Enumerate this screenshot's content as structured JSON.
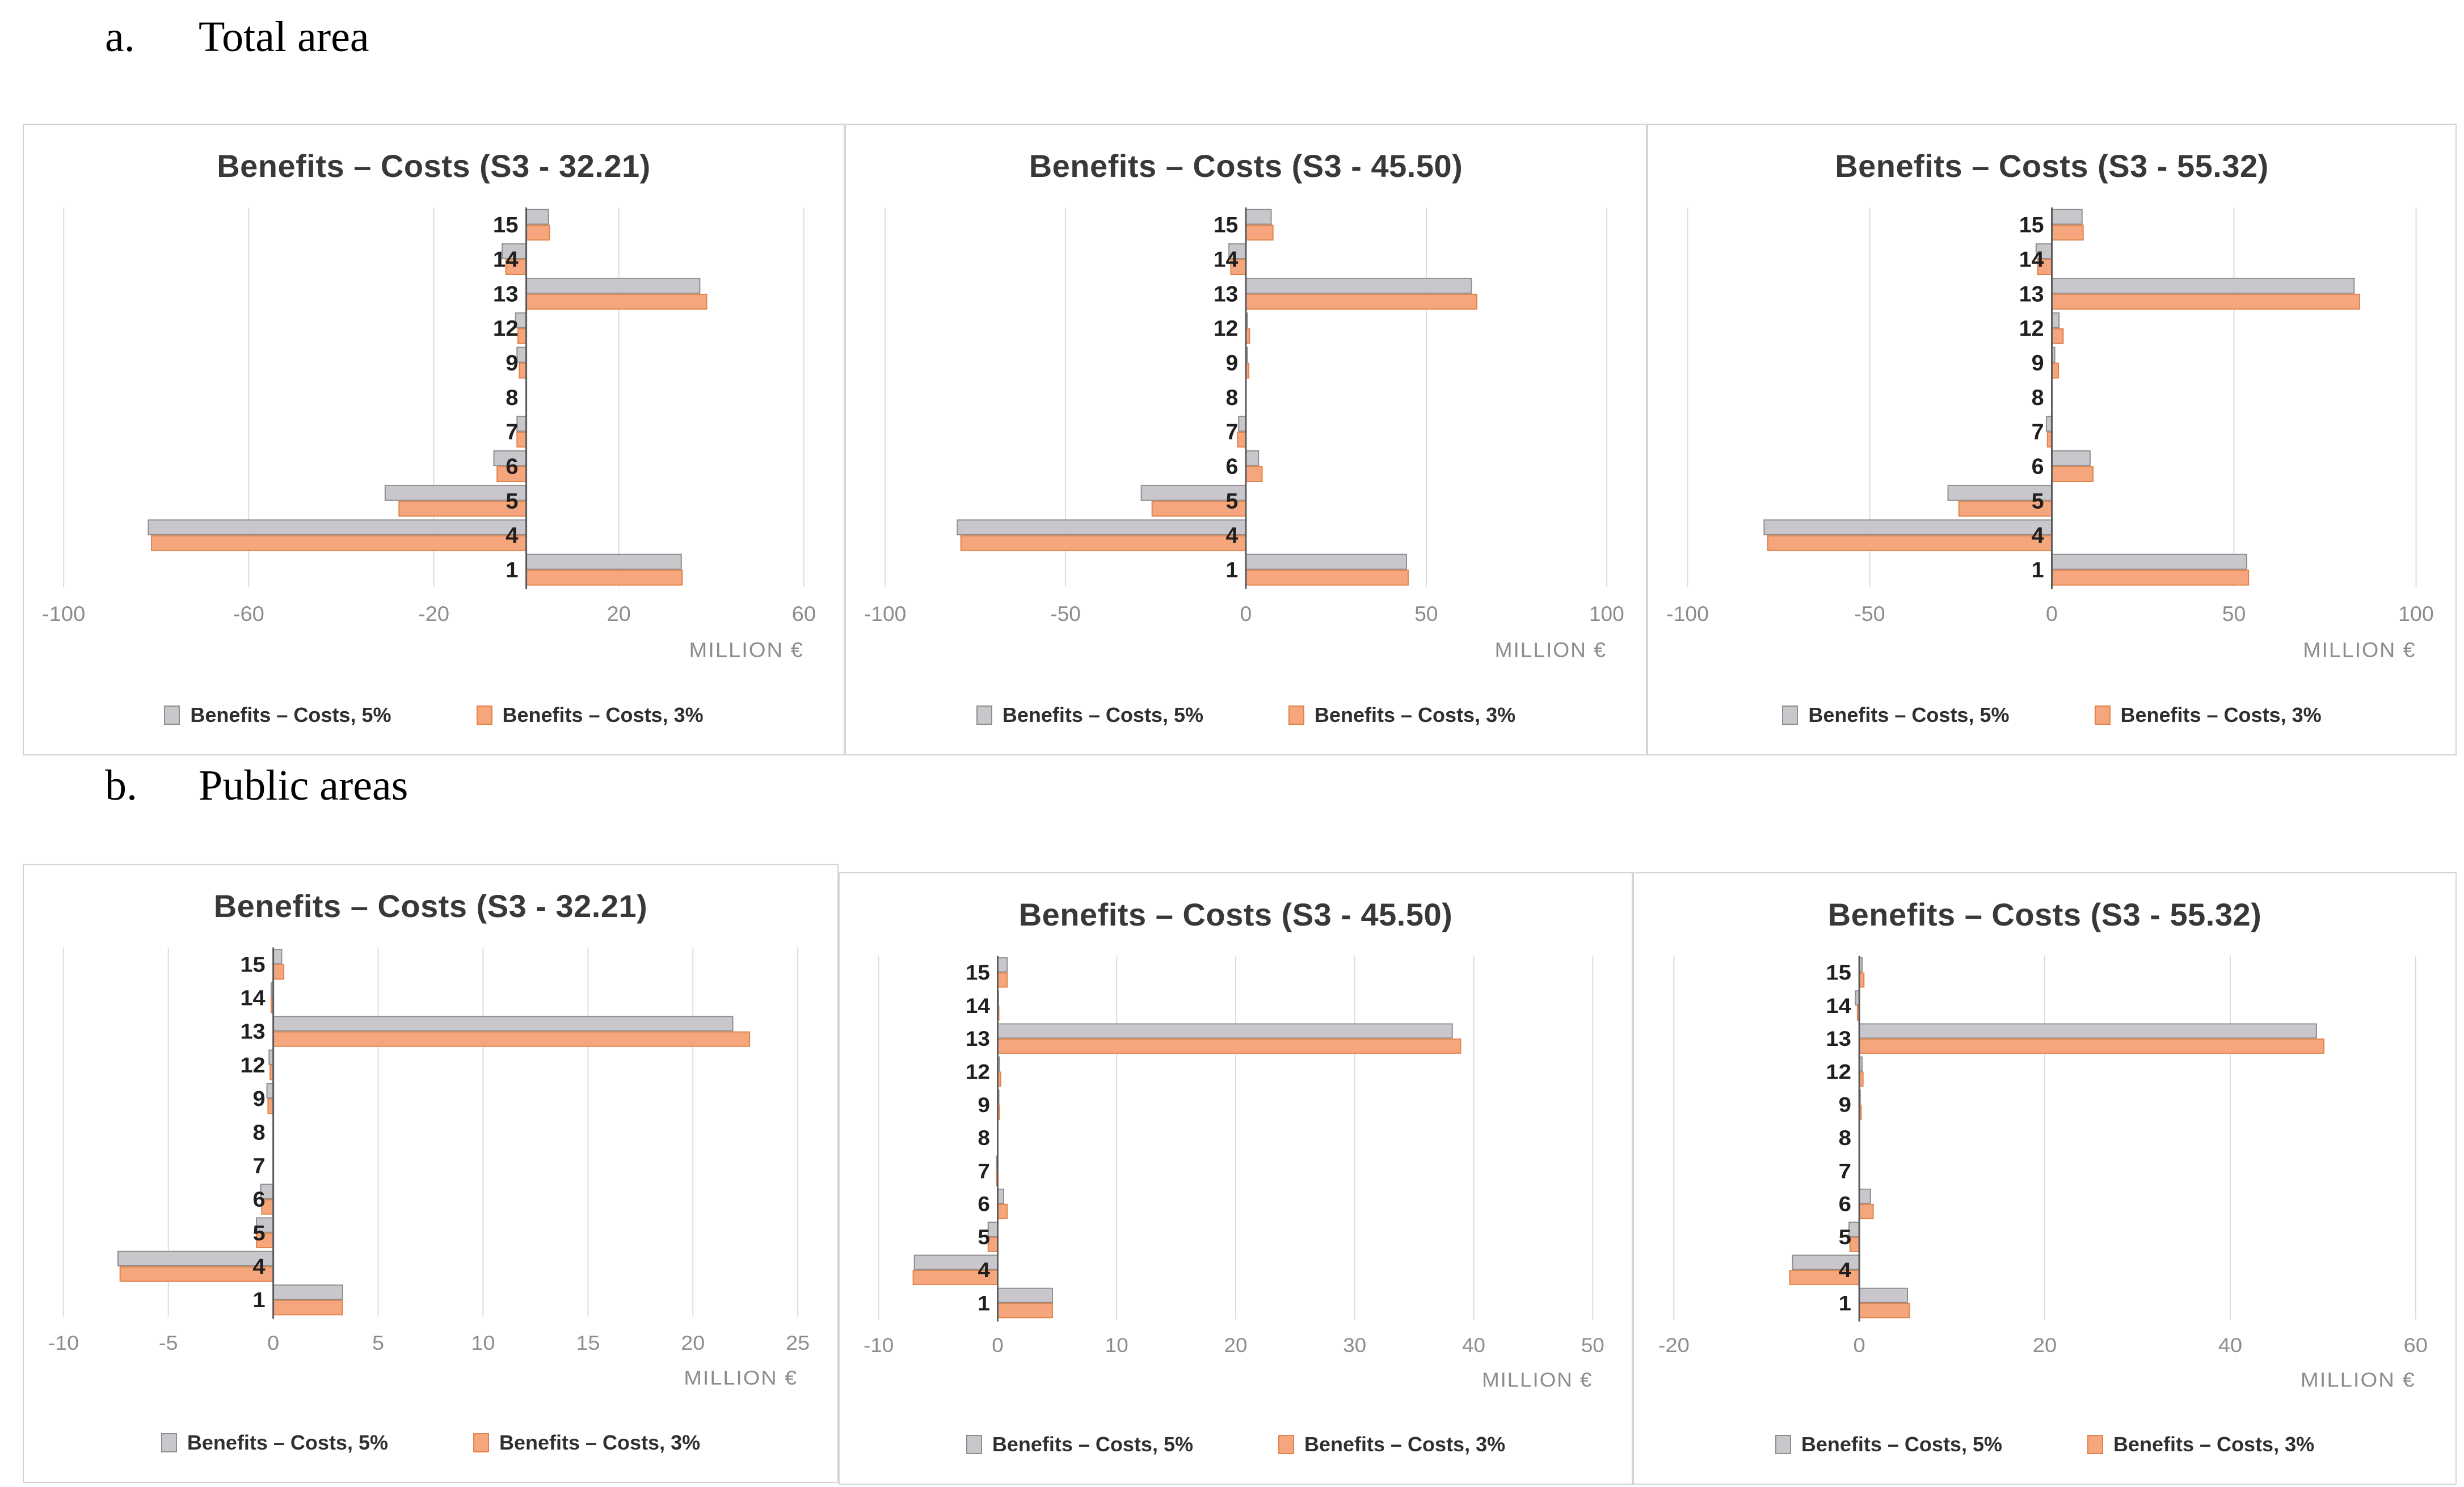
{
  "sections": [
    {
      "label": "a.",
      "title": "Total area"
    },
    {
      "label": "b.",
      "title": "Public areas"
    }
  ],
  "colors": {
    "gray_fill": "#c9c7cb",
    "gray_border": "#8e8e8e",
    "orange_fill": "#f5a67c",
    "orange_border": "#e2834b",
    "gridline": "#dcdcdc",
    "axis_line": "#595959",
    "tick_text": "#8c8c8c",
    "category_text": "#1f1f1f",
    "title_text": "#383838",
    "xlabel_text": "#8c8c8c"
  },
  "chart_data": [
    {
      "type": "bar",
      "orientation": "horizontal",
      "title": "Benefits – Costs (S3 - 32.21)",
      "xlabel": "MILLION €",
      "xlim": [
        -100,
        60
      ],
      "xticks": [
        -100,
        -60,
        -20,
        20,
        60
      ],
      "grid": true,
      "legend_position": "bottom",
      "categories": [
        "15",
        "14",
        "13",
        "12",
        "9",
        "8",
        "7",
        "6",
        "5",
        "4",
        "1"
      ],
      "series": [
        {
          "name": "Benefits – Costs, 5%",
          "color_key": "gray",
          "values": [
            4.8,
            -5.2,
            37.5,
            -2.3,
            -2.0,
            0,
            -2.0,
            -7.0,
            -30.5,
            -81.7,
            33.5
          ]
        },
        {
          "name": "Benefits – Costs, 3%",
          "color_key": "orange",
          "values": [
            5.0,
            -4.4,
            39.0,
            -1.8,
            -1.5,
            0,
            -2.0,
            -6.3,
            -27.5,
            -81.0,
            33.7
          ]
        }
      ]
    },
    {
      "type": "bar",
      "orientation": "horizontal",
      "title": "Benefits – Costs (S3 - 45.50)",
      "xlabel": "MILLION €",
      "xlim": [
        -100,
        100
      ],
      "xticks": [
        -100,
        -50,
        0,
        50,
        100
      ],
      "grid": true,
      "legend_position": "bottom",
      "categories": [
        "15",
        "14",
        "13",
        "12",
        "9",
        "8",
        "7",
        "6",
        "5",
        "4",
        "1"
      ],
      "series": [
        {
          "name": "Benefits – Costs, 5%",
          "color_key": "gray",
          "values": [
            7.0,
            -4.7,
            62.5,
            0.4,
            0.4,
            0,
            -2.0,
            3.5,
            -29.0,
            -80.0,
            44.5
          ]
        },
        {
          "name": "Benefits – Costs, 3%",
          "color_key": "orange",
          "values": [
            7.5,
            -4.2,
            64.0,
            1.0,
            0.8,
            0,
            -2.3,
            4.5,
            -26.0,
            -79.0,
            45.0
          ]
        }
      ]
    },
    {
      "type": "bar",
      "orientation": "horizontal",
      "title": "Benefits – Costs (S3 - 55.32)",
      "xlabel": "MILLION €",
      "xlim": [
        -100,
        100
      ],
      "xticks": [
        -100,
        -50,
        0,
        50,
        100
      ],
      "grid": true,
      "legend_position": "bottom",
      "categories": [
        "15",
        "14",
        "13",
        "12",
        "9",
        "8",
        "7",
        "6",
        "5",
        "4",
        "1"
      ],
      "series": [
        {
          "name": "Benefits – Costs, 5%",
          "color_key": "gray",
          "values": [
            8.3,
            -4.3,
            83.0,
            2.0,
            0.8,
            0,
            -1.5,
            10.5,
            -28.5,
            -79.0,
            53.5
          ]
        },
        {
          "name": "Benefits – Costs, 3%",
          "color_key": "orange",
          "values": [
            8.6,
            -3.9,
            84.5,
            3.1,
            1.8,
            0,
            -1.2,
            11.3,
            -25.5,
            -78.0,
            54.0
          ]
        }
      ]
    },
    {
      "type": "bar",
      "orientation": "horizontal",
      "title": "Benefits – Costs (S3 - 32.21)",
      "xlabel": "MILLION €",
      "xlim": [
        -10,
        25
      ],
      "xticks": [
        -10,
        -5,
        0,
        5,
        10,
        15,
        20,
        25
      ],
      "grid": true,
      "legend_position": "bottom",
      "categories": [
        "15",
        "14",
        "13",
        "12",
        "9",
        "8",
        "7",
        "6",
        "5",
        "4",
        "1"
      ],
      "series": [
        {
          "name": "Benefits – Costs, 5%",
          "color_key": "gray",
          "values": [
            0.4,
            -0.1,
            21.9,
            -0.2,
            -0.3,
            0,
            0,
            -0.6,
            -0.8,
            -7.4,
            3.3
          ]
        },
        {
          "name": "Benefits – Costs, 3%",
          "color_key": "orange",
          "values": [
            0.5,
            -0.1,
            22.7,
            -0.15,
            -0.25,
            0,
            0,
            -0.55,
            -0.8,
            -7.3,
            3.3
          ]
        }
      ]
    },
    {
      "type": "bar",
      "orientation": "horizontal",
      "title": "Benefits – Costs (S3 - 45.50)",
      "xlabel": "MILLION €",
      "xlim": [
        -10,
        50
      ],
      "xticks": [
        -10,
        0,
        10,
        20,
        30,
        40,
        50
      ],
      "grid": true,
      "legend_position": "bottom",
      "categories": [
        "15",
        "14",
        "13",
        "12",
        "9",
        "8",
        "7",
        "6",
        "5",
        "4",
        "1"
      ],
      "series": [
        {
          "name": "Benefits – Costs, 5%",
          "color_key": "gray",
          "values": [
            0.8,
            0.05,
            38.2,
            0.15,
            0.1,
            0,
            -0.1,
            0.5,
            -0.8,
            -7.0,
            4.6
          ]
        },
        {
          "name": "Benefits – Costs, 3%",
          "color_key": "orange",
          "values": [
            0.8,
            0.1,
            38.9,
            0.25,
            0.15,
            0,
            -0.1,
            0.8,
            -0.8,
            -7.1,
            4.6
          ]
        }
      ]
    },
    {
      "type": "bar",
      "orientation": "horizontal",
      "title": "Benefits – Costs (S3 - 55.32)",
      "xlabel": "MILLION €",
      "xlim": [
        -20,
        60
      ],
      "xticks": [
        -20,
        0,
        20,
        40,
        60
      ],
      "grid": true,
      "legend_position": "bottom",
      "categories": [
        "15",
        "14",
        "13",
        "12",
        "9",
        "8",
        "7",
        "6",
        "5",
        "4",
        "1"
      ],
      "series": [
        {
          "name": "Benefits – Costs, 5%",
          "color_key": "gray",
          "values": [
            0.3,
            -0.4,
            49.3,
            0.3,
            0.1,
            0,
            0,
            1.2,
            -1.1,
            -7.2,
            5.2
          ]
        },
        {
          "name": "Benefits – Costs, 3%",
          "color_key": "orange",
          "values": [
            0.5,
            -0.2,
            50.1,
            0.4,
            0.2,
            0,
            0,
            1.5,
            -1.0,
            -7.5,
            5.4
          ]
        }
      ]
    }
  ]
}
